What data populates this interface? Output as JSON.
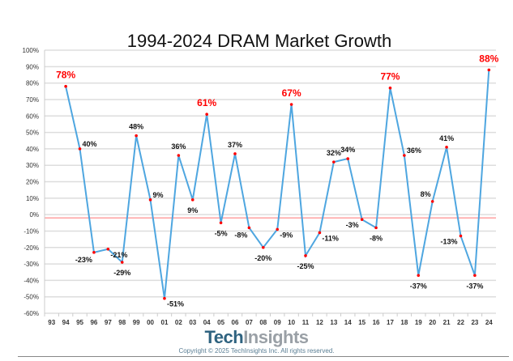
{
  "chart_data": {
    "type": "line",
    "title": "1994-2024 DRAM Market Growth",
    "xlabel": "",
    "ylabel": "",
    "x_ticks": [
      "93",
      "94",
      "95",
      "96",
      "97",
      "98",
      "99",
      "00",
      "01",
      "02",
      "03",
      "04",
      "05",
      "06",
      "07",
      "08",
      "09",
      "10",
      "11",
      "12",
      "13",
      "14",
      "15",
      "16",
      "17",
      "18",
      "19",
      "20",
      "21",
      "22",
      "23",
      "24"
    ],
    "y_ticks": [
      "100%",
      "90%",
      "80%",
      "70%",
      "60%",
      "50%",
      "40%",
      "30%",
      "20%",
      "10%",
      "0%",
      "-10%",
      "-20%",
      "-30%",
      "-40%",
      "-50%",
      "-60%"
    ],
    "ylim": [
      -60,
      100
    ],
    "grid": true,
    "reference_line": -2,
    "series": [
      {
        "name": "DRAM Market Growth",
        "x": [
          "94",
          "95",
          "96",
          "97",
          "98",
          "99",
          "00",
          "01",
          "02",
          "03",
          "04",
          "05",
          "06",
          "07",
          "08",
          "09",
          "10",
          "11",
          "12",
          "13",
          "14",
          "15",
          "16",
          "17",
          "18",
          "19",
          "20",
          "21",
          "22",
          "23",
          "24"
        ],
        "values": [
          78,
          40,
          -23,
          -21,
          -29,
          48,
          9,
          -51,
          36,
          9,
          61,
          -5,
          37,
          -8,
          -20,
          -9,
          67,
          -25,
          -11,
          32,
          34,
          -3,
          -8,
          77,
          36,
          -37,
          8,
          41,
          -13,
          -37,
          88
        ],
        "labels": [
          "78%",
          "40%",
          "-23%",
          "-21%",
          "-29%",
          "48%",
          "9%",
          "-51%",
          "36%",
          "9%",
          "61%",
          "-5%",
          "37%",
          "-8%",
          "-20%",
          "-9%",
          "67%",
          "-25%",
          "-11%",
          "32%",
          "34%",
          "-3%",
          "-8%",
          "77%",
          "36%",
          "-37%",
          "8%",
          "41%",
          "-13%",
          "-37%",
          "88%"
        ],
        "label_pos": [
          "above",
          "right",
          "below-left",
          "right",
          "below",
          "above",
          "right",
          "right",
          "above",
          "below",
          "above",
          "below",
          "above",
          "below-left",
          "below",
          "right",
          "above",
          "below",
          "right",
          "above",
          "above",
          "left",
          "below",
          "above",
          "right",
          "below",
          "above-left",
          "above",
          "left",
          "below",
          "above"
        ],
        "highlight": [
          true,
          false,
          false,
          false,
          false,
          false,
          false,
          false,
          false,
          false,
          true,
          false,
          false,
          false,
          false,
          false,
          true,
          false,
          false,
          false,
          false,
          false,
          false,
          true,
          false,
          false,
          false,
          false,
          false,
          false,
          true
        ]
      }
    ],
    "colors": {
      "line": "#4ea6e0",
      "point": "#ff0000",
      "highlight_label": "#ff0000",
      "label": "#111111",
      "grid": "#dddddd",
      "reference": "#ff8080"
    }
  },
  "footer": {
    "logo_a": "Tech",
    "logo_b": "Insights",
    "copyright": "Copyright © 2025 TechInsights Inc.  All rights reserved."
  }
}
